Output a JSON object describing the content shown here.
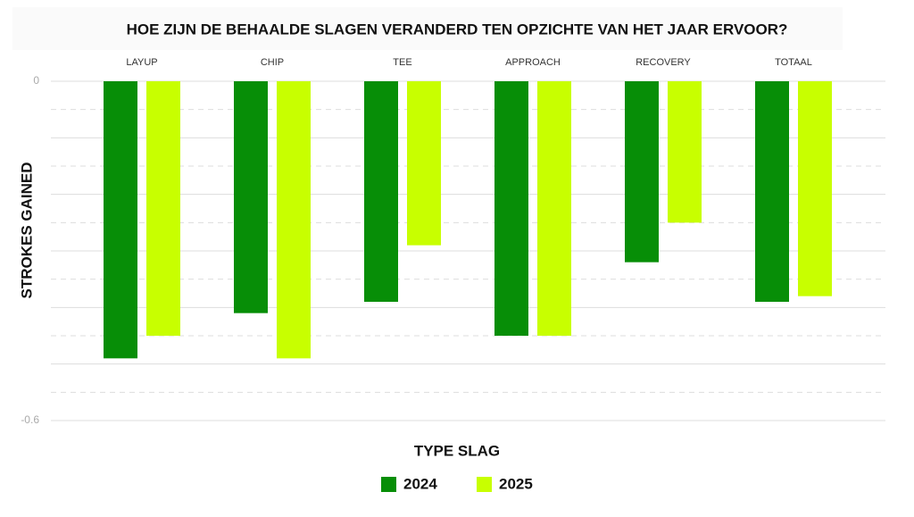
{
  "chart_data": {
    "type": "bar",
    "title": "HOE ZIJN DE BEHAALDE SLAGEN VERANDERD TEN OPZICHTE VAN HET JAAR ERVOOR?",
    "xlabel": "TYPE SLAG",
    "ylabel": "STROKES GAINED",
    "categories": [
      "LAYUP",
      "CHIP",
      "TEE",
      "APPROACH",
      "RECOVERY",
      "TOTAAL"
    ],
    "series": [
      {
        "name": "2024",
        "color": "#078e07",
        "values": [
          -0.49,
          -0.41,
          -0.39,
          -0.45,
          -0.32,
          -0.39
        ]
      },
      {
        "name": "2025",
        "color": "#c8ff00",
        "values": [
          -0.45,
          -0.49,
          -0.29,
          -0.45,
          -0.25,
          -0.38
        ]
      }
    ],
    "ylim": [
      0,
      -0.6
    ],
    "yticks": [
      0,
      -0.6
    ],
    "grid_major": [
      0,
      -0.1,
      -0.2,
      -0.3,
      -0.4,
      -0.5,
      -0.6
    ],
    "grid_minor": [
      -0.05,
      -0.15,
      -0.25,
      -0.35,
      -0.45,
      -0.55
    ],
    "legend": "bottom"
  }
}
